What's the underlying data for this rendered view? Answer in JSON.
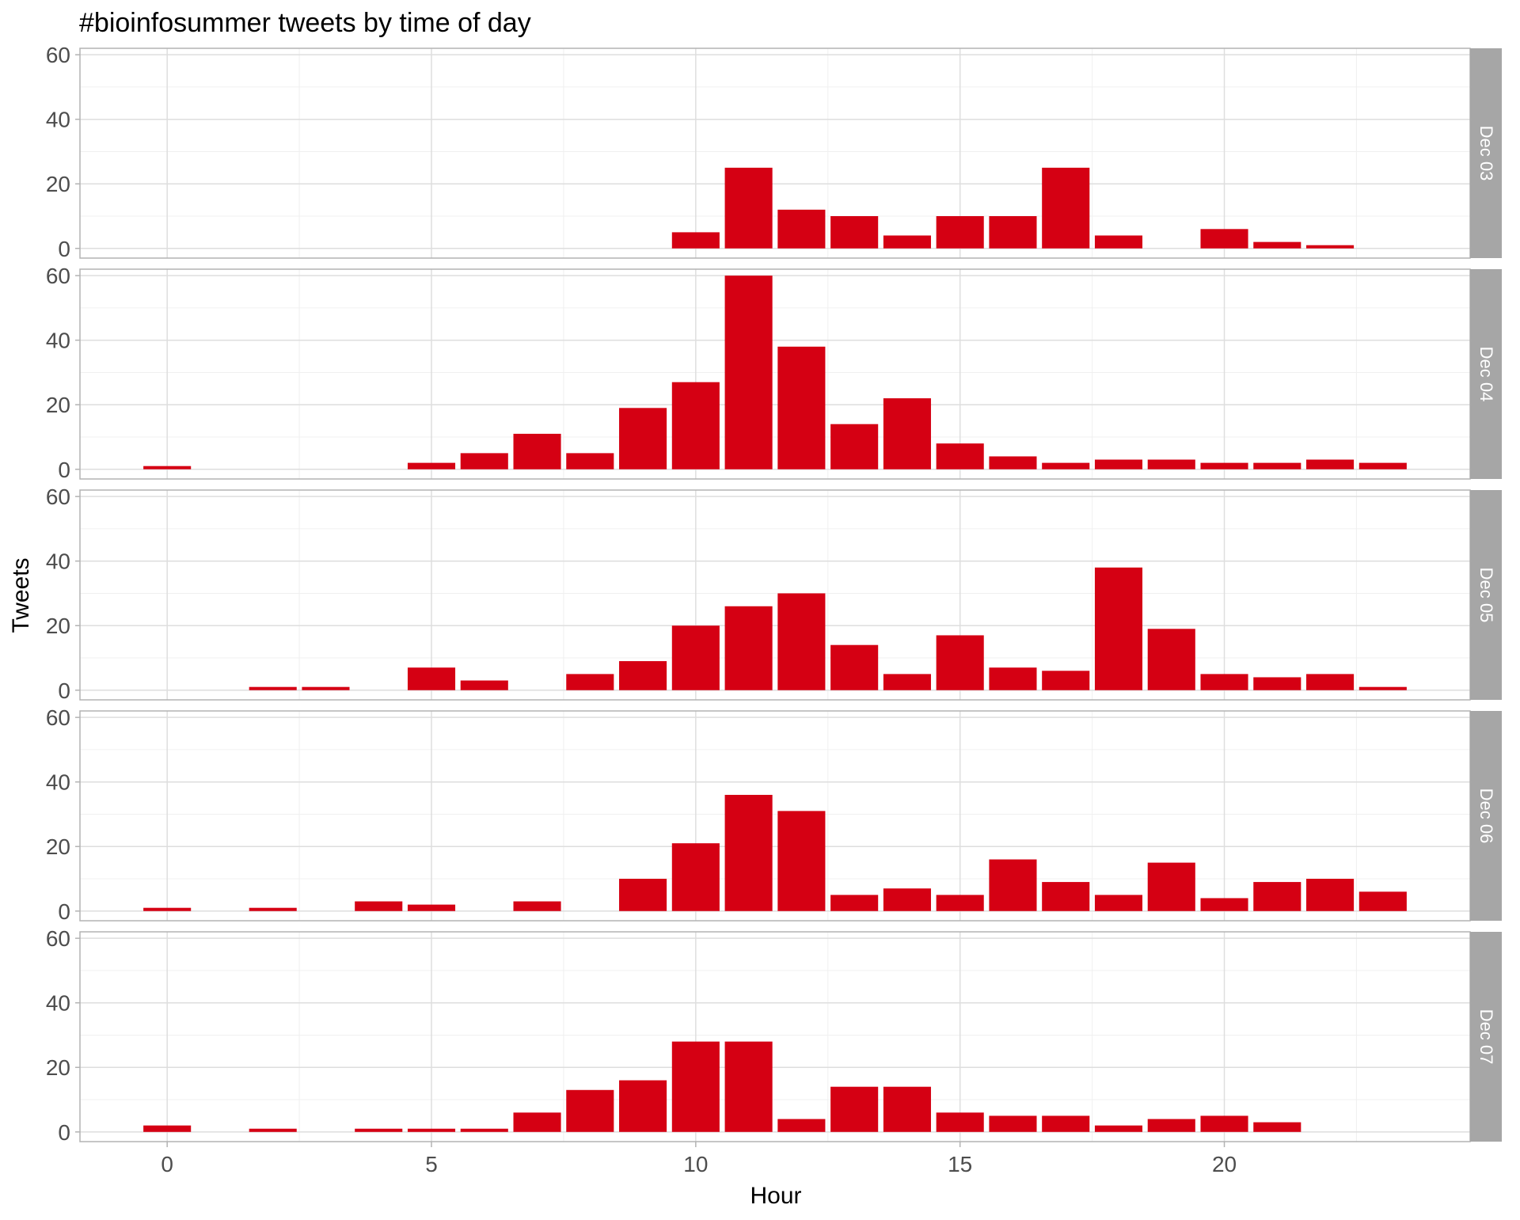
{
  "chart_data": {
    "type": "bar",
    "title": "#bioinfosummer tweets by time of day",
    "xlabel": "Hour",
    "ylabel": "Tweets",
    "xlim": [
      -1.65,
      24.65
    ],
    "ylim": [
      -3,
      62
    ],
    "x_ticks": [
      0,
      5,
      10,
      15,
      20
    ],
    "y_ticks": [
      0,
      20,
      40,
      60
    ],
    "grid": true,
    "legend": "none",
    "bar_color": "#d50013",
    "strip_color": "#a6a6a6",
    "facets": [
      {
        "label": "Dec 03",
        "x": [
          10,
          11,
          12,
          13,
          14,
          15,
          16,
          17,
          18,
          20,
          21,
          22
        ],
        "values": [
          5,
          25,
          12,
          10,
          4,
          10,
          10,
          25,
          4,
          6,
          2,
          1
        ]
      },
      {
        "label": "Dec 04",
        "x": [
          0,
          5,
          6,
          7,
          8,
          9,
          10,
          11,
          12,
          13,
          14,
          15,
          16,
          17,
          18,
          19,
          20,
          21,
          22,
          23
        ],
        "values": [
          1,
          2,
          5,
          11,
          5,
          19,
          27,
          60,
          38,
          14,
          22,
          8,
          4,
          2,
          3,
          3,
          2,
          2,
          3,
          2
        ]
      },
      {
        "label": "Dec 05",
        "x": [
          2,
          3,
          5,
          6,
          8,
          9,
          10,
          11,
          12,
          13,
          14,
          15,
          16,
          17,
          18,
          19,
          20,
          21,
          22,
          23
        ],
        "values": [
          1,
          1,
          7,
          3,
          5,
          9,
          20,
          26,
          30,
          14,
          5,
          17,
          7,
          6,
          38,
          19,
          5,
          4,
          5,
          1
        ]
      },
      {
        "label": "Dec 06",
        "x": [
          0,
          2,
          4,
          5,
          7,
          9,
          10,
          11,
          12,
          13,
          14,
          15,
          16,
          17,
          18,
          19,
          20,
          21,
          22,
          23
        ],
        "values": [
          1,
          1,
          3,
          2,
          3,
          10,
          21,
          36,
          31,
          5,
          7,
          5,
          16,
          9,
          5,
          15,
          4,
          9,
          10,
          6
        ]
      },
      {
        "label": "Dec 07",
        "x": [
          0,
          2,
          4,
          5,
          6,
          7,
          8,
          9,
          10,
          11,
          12,
          13,
          14,
          15,
          16,
          17,
          18,
          19,
          20,
          21
        ],
        "values": [
          2,
          1,
          1,
          1,
          1,
          6,
          13,
          16,
          28,
          28,
          4,
          14,
          14,
          6,
          5,
          5,
          2,
          4,
          5,
          3
        ]
      }
    ]
  }
}
